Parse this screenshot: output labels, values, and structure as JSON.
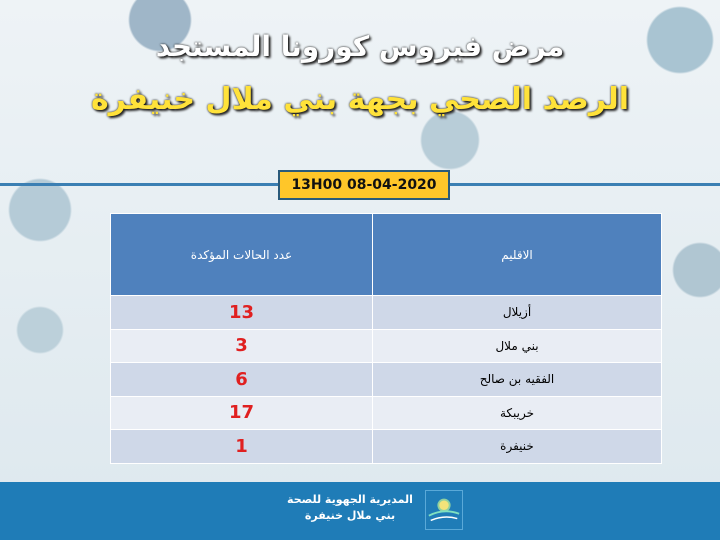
{
  "header": {
    "title": "مرض فيروس كورونا المستجد",
    "subtitle": "الرصد الصحي  بجهة بني ملال خنيفرة",
    "datetime": "13H00  08-04-2020"
  },
  "table": {
    "headers": {
      "province": "الاقليم",
      "cases": "عدد الحالات المؤكدة"
    },
    "rows": [
      {
        "province": "أزيلال",
        "cases": "13"
      },
      {
        "province": "بني ملال",
        "cases": "3"
      },
      {
        "province": "الفقيه بن صالح",
        "cases": "6"
      },
      {
        "province": "خريبكة",
        "cases": "17"
      },
      {
        "province": "خنيفرة",
        "cases": "1"
      }
    ]
  },
  "footer": {
    "line1": "المديرية الجهوية للصحة",
    "line2": "بني ملال خنيفرة"
  },
  "colors": {
    "header_bg": "#4f81bd",
    "count": "#e02020",
    "date_bg": "#ffc629",
    "footer": "#1f7cb7"
  }
}
